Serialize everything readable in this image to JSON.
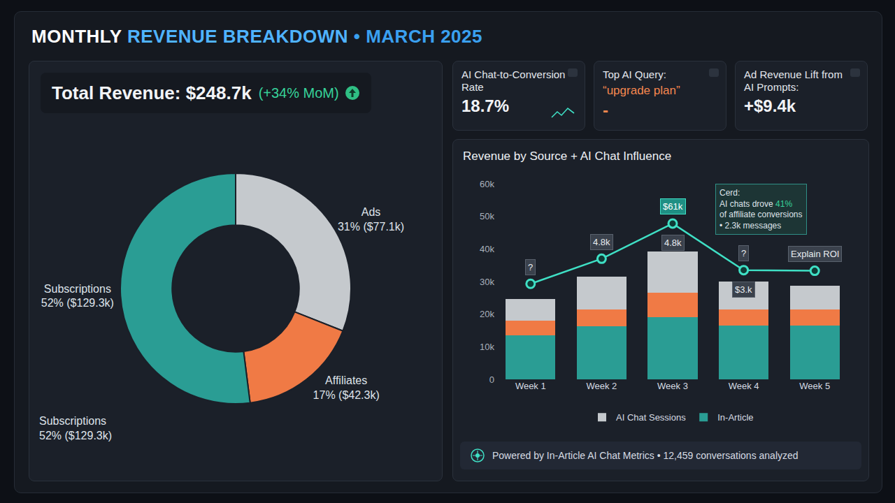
{
  "header": {
    "title": [
      "MONTHLY",
      "REVENUE BREAKDOWN",
      "• MARCH 2025"
    ]
  },
  "total": {
    "label": "Total Revenue: $248.7k",
    "change": "(+34% MoM)"
  },
  "kpis": [
    {
      "label": "AI Chat-to-Conversion Rate",
      "value": "18.7%"
    },
    {
      "label": "Top AI Query:",
      "value": "“upgrade plan”",
      "note": "-"
    },
    {
      "label": "Ad Revenue Lift from AI Prompts:",
      "value": "+$9.4k"
    }
  ],
  "footer": "Powered by In-Article AI Chat Metrics • 12,459 conversations analyzed",
  "chart_data": [
    {
      "type": "donut",
      "categories": [
        "Ads",
        "Affiliates",
        "Subscriptions"
      ],
      "values": [
        31,
        17,
        52
      ],
      "value_labels": [
        "31% ($77.1k)",
        "17% ($42.3k)",
        "52% ($129.3k)"
      ],
      "colors": [
        "#c5c9cd",
        "#f07a45",
        "#2a9d94"
      ],
      "annotations": [
        {
          "text": "Subscriptions",
          "value_label": "52% ($129.3k)"
        }
      ]
    },
    {
      "type": "bar",
      "stacked": true,
      "title": "Revenue by Source + AI Chat Influence",
      "categories": [
        "Week 1",
        "Week 2",
        "Week 3",
        "Week 4",
        "Week 5"
      ],
      "series": [
        {
          "name": "In-Article",
          "color": "#2a9d94",
          "values": [
            13600,
            16200,
            19000,
            16400,
            16400
          ]
        },
        {
          "color": "#f07a45",
          "values": [
            4400,
            5300,
            7500,
            5100,
            5100
          ]
        },
        {
          "name": "AI Chat Sessions",
          "color": "#c5c9cd",
          "values": [
            6600,
            10100,
            12800,
            8500,
            7300
          ]
        },
        {
          "type": "line",
          "color": "#3fe0c5",
          "marker": "circle",
          "values": [
            29300,
            37000,
            47800,
            33500,
            33300
          ],
          "point_labels": [
            [
              "?"
            ],
            [
              "4.8k"
            ],
            [
              "$61k",
              "4.8k"
            ],
            [
              "?",
              "$3.k"
            ],
            [
              "Explain ROI"
            ]
          ]
        }
      ],
      "ylim": [
        0,
        60000
      ],
      "yticks": [
        0,
        {
          "value": 10000,
          "label": "10k"
        },
        {
          "value": 20000,
          "label": "20k"
        },
        {
          "value": 30000,
          "label": "30k"
        },
        {
          "value": 40000,
          "label": "40k"
        },
        {
          "value": 50000,
          "label": "50k"
        },
        {
          "value": 60000,
          "label": "60k"
        }
      ],
      "grid": false,
      "legend": "bottom",
      "callout": [
        "Cerd:",
        "AI chats drove 41%",
        "of affiliate conversions",
        "• 2.3k messages"
      ]
    }
  ]
}
